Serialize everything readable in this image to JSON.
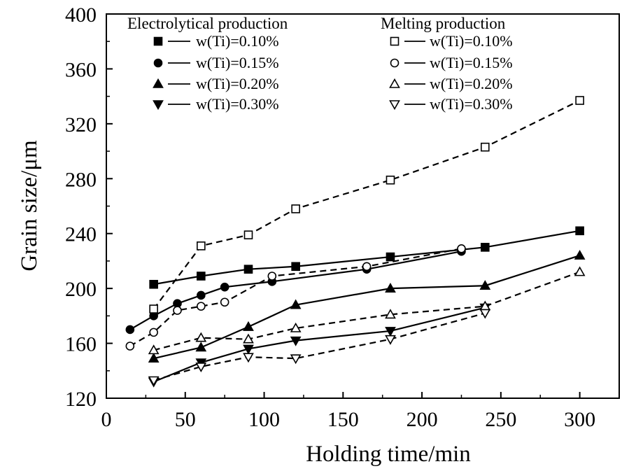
{
  "chart_data": {
    "type": "line",
    "xlabel": "Holding time/min",
    "ylabel": "Grain size/μm",
    "xlim": [
      0,
      325
    ],
    "ylim": [
      120,
      400
    ],
    "xticks": [
      0,
      50,
      100,
      150,
      200,
      250,
      300
    ],
    "yticks": [
      120,
      160,
      200,
      240,
      280,
      320,
      360,
      400
    ],
    "grid": false,
    "legend_placement": "top",
    "legend_groups": [
      {
        "title": "Electrolytical production",
        "entries": [
          "w(Ti)=0.10%",
          "w(Ti)=0.15%",
          "w(Ti)=0.20%",
          "w(Ti)=0.30%"
        ]
      },
      {
        "title": "Melting production",
        "entries": [
          "w(Ti)=0.10%",
          "w(Ti)=0.15%",
          "w(Ti)=0.20%",
          "w(Ti)=0.30%"
        ]
      }
    ],
    "series": [
      {
        "name": "w(Ti)=0.10%",
        "group": "Electrolytical production",
        "marker": "square",
        "filled": true,
        "line": "solid",
        "x": [
          30,
          60,
          90,
          120,
          180,
          240,
          300
        ],
        "y": [
          203,
          209,
          214,
          216,
          223,
          230,
          242
        ]
      },
      {
        "name": "w(Ti)=0.15%",
        "group": "Electrolytical production",
        "marker": "circle",
        "filled": true,
        "line": "solid",
        "x": [
          15,
          30,
          45,
          60,
          75,
          105,
          165,
          225
        ],
        "y": [
          170,
          180,
          189,
          195,
          201,
          205,
          214,
          227
        ]
      },
      {
        "name": "w(Ti)=0.20%",
        "group": "Electrolytical production",
        "marker": "triangle-up",
        "filled": true,
        "line": "solid",
        "x": [
          30,
          60,
          90,
          120,
          180,
          240,
          300
        ],
        "y": [
          149,
          157,
          172,
          188,
          200,
          202,
          224
        ]
      },
      {
        "name": "w(Ti)=0.30%",
        "group": "Electrolytical production",
        "marker": "triangle-down",
        "filled": true,
        "line": "solid",
        "x": [
          30,
          60,
          90,
          120,
          180,
          240
        ],
        "y": [
          132,
          146,
          156,
          162,
          169,
          186
        ]
      },
      {
        "name": "w(Ti)=0.10%",
        "group": "Melting production",
        "marker": "square",
        "filled": false,
        "line": "dashed",
        "x": [
          30,
          60,
          90,
          120,
          180,
          240,
          300
        ],
        "y": [
          185,
          231,
          239,
          258,
          279,
          303,
          337
        ]
      },
      {
        "name": "w(Ti)=0.15%",
        "group": "Melting production",
        "marker": "circle",
        "filled": false,
        "line": "dashed",
        "x": [
          15,
          30,
          45,
          60,
          75,
          105,
          165,
          225
        ],
        "y": [
          158,
          168,
          184,
          187,
          190,
          209,
          216,
          229
        ]
      },
      {
        "name": "w(Ti)=0.20%",
        "group": "Melting production",
        "marker": "triangle-up",
        "filled": false,
        "line": "dashed",
        "x": [
          30,
          60,
          90,
          120,
          180,
          240,
          300
        ],
        "y": [
          155,
          164,
          163,
          171,
          181,
          187,
          212
        ]
      },
      {
        "name": "w(Ti)=0.30%",
        "group": "Melting production",
        "marker": "triangle-down",
        "filled": false,
        "line": "dashed",
        "x": [
          30,
          60,
          90,
          120,
          180,
          240
        ],
        "y": [
          133,
          143,
          150,
          149,
          163,
          182
        ]
      }
    ]
  }
}
